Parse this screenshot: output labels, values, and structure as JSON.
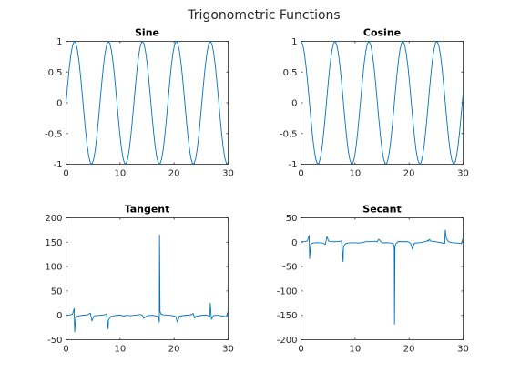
{
  "figure": {
    "suptitle": "Trigonometric Functions",
    "line_color": "#0072bd"
  },
  "chart_data": [
    {
      "type": "line",
      "title": "Sine",
      "function": "sin",
      "xlim": [
        0,
        30
      ],
      "ylim": [
        -1,
        1
      ],
      "xticks": [
        0,
        10,
        20,
        30
      ],
      "yticks": [
        -1,
        -0.5,
        0,
        0.5,
        1
      ],
      "ytick_labels": [
        "-1",
        "-0.5",
        "0",
        "0.5",
        "1"
      ],
      "series": [
        {
          "x": [
            0.0,
            0.3,
            0.6,
            0.9,
            1.2,
            1.5,
            1.8,
            2.1,
            2.4,
            2.7,
            3.0,
            3.3,
            3.6,
            3.9,
            4.2,
            4.5,
            4.8,
            5.1,
            5.4,
            5.7,
            6.0,
            6.3,
            6.6,
            6.9,
            7.2,
            7.5,
            7.8,
            8.1,
            8.4,
            8.7,
            9.0,
            9.3,
            9.6,
            9.9,
            10.2,
            10.5,
            10.8,
            11.1,
            11.4,
            11.7,
            12.0,
            12.3,
            12.6,
            12.9,
            13.2,
            13.5,
            13.8,
            14.1,
            14.4,
            14.7,
            15.0,
            15.3,
            15.6,
            15.9,
            16.2,
            16.5,
            16.8,
            17.1,
            17.4,
            17.7,
            18.0,
            18.3,
            18.6,
            18.9,
            19.2,
            19.5,
            19.8,
            20.1,
            20.4,
            20.7,
            21.0,
            21.3,
            21.6,
            21.9,
            22.2,
            22.5,
            22.8,
            23.1,
            23.4,
            23.7,
            24.0,
            24.3,
            24.6,
            24.9,
            25.2,
            25.5,
            25.8,
            26.1,
            26.4,
            26.7,
            27.0,
            27.3,
            27.6,
            27.9,
            28.2,
            28.5,
            28.8,
            29.1,
            29.4,
            29.7,
            30.0
          ],
          "y": [
            0.0,
            0.296,
            0.565,
            0.783,
            0.932,
            0.997,
            0.974,
            0.863,
            0.675,
            0.427,
            0.141,
            -0.158,
            -0.443,
            -0.688,
            -0.872,
            -0.978,
            -0.996,
            -0.926,
            -0.773,
            -0.551,
            -0.279,
            0.017,
            0.312,
            0.579,
            0.794,
            0.938,
            0.998,
            0.97,
            0.854,
            0.662,
            0.412,
            0.124,
            -0.175,
            -0.458,
            -0.7,
            -0.88,
            -0.981,
            -0.994,
            -0.92,
            -0.762,
            -0.537,
            -0.263,
            0.034,
            0.327,
            0.593,
            0.804,
            0.943,
            0.999,
            0.966,
            0.845,
            0.65,
            0.397,
            0.108,
            -0.191,
            -0.473,
            -0.712,
            -0.888,
            -0.984,
            -0.991,
            -0.913,
            -0.751,
            -0.522,
            -0.246,
            0.051,
            0.343,
            0.606,
            0.814,
            0.948,
            1.0,
            0.962,
            0.837,
            0.637,
            0.381,
            0.091,
            -0.208,
            -0.488,
            -0.724,
            -0.895,
            -0.987,
            -0.989,
            -0.906,
            -0.74,
            -0.508,
            -0.23,
            0.068,
            0.359,
            0.62,
            0.824,
            0.953,
            1.0,
            0.956,
            0.829,
            0.624,
            0.366,
            0.075,
            -0.224,
            -0.502,
            -0.735,
            -0.902,
            -0.99,
            -0.988
          ]
        }
      ]
    },
    {
      "type": "line",
      "title": "Cosine",
      "function": "cos",
      "xlim": [
        0,
        30
      ],
      "ylim": [
        -1,
        1
      ],
      "xticks": [
        0,
        10,
        20,
        30
      ],
      "yticks": [
        -1,
        -0.5,
        0,
        0.5,
        1
      ],
      "ytick_labels": [
        "-1",
        "-0.5",
        "0",
        "0.5",
        "1"
      ],
      "series": [
        {
          "x": [
            0.0,
            0.3,
            0.6,
            0.9,
            1.2,
            1.5,
            1.8,
            2.1,
            2.4,
            2.7,
            3.0,
            3.3,
            3.6,
            3.9,
            4.2,
            4.5,
            4.8,
            5.1,
            5.4,
            5.7,
            6.0,
            6.3,
            6.6,
            6.9,
            7.2,
            7.5,
            7.8,
            8.1,
            8.4,
            8.7,
            9.0,
            9.3,
            9.6,
            9.9,
            10.2,
            10.5,
            10.8,
            11.1,
            11.4,
            11.7,
            12.0,
            12.3,
            12.6,
            12.9,
            13.2,
            13.5,
            13.8,
            14.1,
            14.4,
            14.7,
            15.0,
            15.3,
            15.6,
            15.9,
            16.2,
            16.5,
            16.8,
            17.1,
            17.4,
            17.7,
            18.0,
            18.3,
            18.6,
            18.9,
            19.2,
            19.5,
            19.8,
            20.1,
            20.4,
            20.7,
            21.0,
            21.3,
            21.6,
            21.9,
            22.2,
            22.5,
            22.8,
            23.1,
            23.4,
            23.7,
            24.0,
            24.3,
            24.6,
            24.9,
            25.2,
            25.5,
            25.8,
            26.1,
            26.4,
            26.7,
            27.0,
            27.3,
            27.6,
            27.9,
            28.2,
            28.5,
            28.8,
            29.1,
            29.4,
            29.7,
            30.0
          ],
          "y": [
            1.0,
            0.955,
            0.825,
            0.622,
            0.362,
            0.071,
            -0.227,
            -0.505,
            -0.737,
            -0.904,
            -0.99,
            -0.987,
            -0.897,
            -0.726,
            -0.49,
            -0.211,
            0.087,
            0.378,
            0.635,
            0.835,
            0.96,
            1.0,
            0.95,
            0.815,
            0.608,
            0.347,
            0.054,
            -0.243,
            -0.519,
            -0.749,
            -0.911,
            -0.992,
            -0.985,
            -0.889,
            -0.714,
            -0.476,
            -0.195,
            0.104,
            0.393,
            0.648,
            0.844,
            0.965,
            0.999,
            0.945,
            0.805,
            0.595,
            0.331,
            0.037,
            -0.26,
            -0.534,
            -0.76,
            -0.918,
            -0.994,
            -0.982,
            -0.882,
            -0.703,
            -0.461,
            -0.178,
            0.121,
            0.409,
            0.66,
            0.853,
            0.969,
            0.999,
            0.939,
            0.796,
            0.581,
            0.315,
            0.02,
            -0.276,
            -0.548,
            -0.771,
            -0.925,
            -0.996,
            -0.979,
            -0.874,
            -0.69,
            -0.446,
            -0.162,
            0.137,
            0.424,
            0.673,
            0.862,
            0.973,
            0.997,
            0.933,
            0.785,
            0.567,
            0.3,
            0.004,
            -0.292,
            -0.562,
            -0.782,
            -0.931,
            -0.997,
            -0.976,
            -0.866,
            -0.677,
            -0.431,
            -0.145,
            0.154
          ]
        }
      ]
    },
    {
      "type": "line",
      "title": "Tangent",
      "function": "tan",
      "xlim": [
        0,
        30
      ],
      "ylim": [
        -50,
        200
      ],
      "xticks": [
        0,
        10,
        20,
        30
      ],
      "yticks": [
        -50,
        0,
        50,
        100,
        150,
        200
      ],
      "ytick_labels": [
        "-50",
        "0",
        "50",
        "100",
        "150",
        "200"
      ],
      "series": [
        {
          "x": [
            0,
            0.3,
            0.6,
            0.9,
            1.2,
            1.5,
            1.6,
            1.8,
            2.1,
            2.4,
            3,
            4,
            4.5,
            4.8,
            5.1,
            5.4,
            6,
            7,
            7.5,
            7.8,
            7.85,
            8.0,
            8.3,
            9,
            10,
            10.8,
            11.0,
            11.3,
            12,
            13,
            13.8,
            14.1,
            14.4,
            15,
            16,
            16.8,
            17.1,
            17.27,
            17.3,
            17.4,
            17.6,
            18,
            19,
            19.8,
            20.3,
            20.6,
            21,
            22,
            23.2,
            23.5,
            23.6,
            23.8,
            24,
            25,
            26,
            26.6,
            26.7,
            26.9,
            27.3,
            28,
            29,
            29.7,
            29.9,
            30
          ],
          "y": [
            0,
            0.3,
            0.7,
            1.3,
            2.6,
            14.1,
            -34,
            -4.3,
            -1.7,
            -0.9,
            -0.1,
            1.2,
            4.6,
            -11.4,
            -2.4,
            -0.8,
            -0.3,
            0.9,
            2.7,
            -28,
            -10,
            -6.8,
            -2.4,
            -0.5,
            0.6,
            -1.5,
            -0.1,
            -0.3,
            -0.6,
            0.5,
            1.8,
            0,
            -6,
            -0.9,
            0.3,
            -1.6,
            -2.8,
            -14,
            165,
            8,
            2.6,
            1.1,
            0.2,
            -0.6,
            -2.3,
            -14,
            -1.5,
            -0.1,
            1.3,
            4.2,
            2,
            -6,
            -2.1,
            -0.1,
            0.8,
            -2.4,
            25,
            -8,
            -0.5,
            0.3,
            -1.4,
            -2.8,
            6,
            -6.4
          ]
        }
      ]
    },
    {
      "type": "line",
      "title": "Secant",
      "function": "sec",
      "xlim": [
        0,
        30
      ],
      "ylim": [
        -200,
        50
      ],
      "xticks": [
        0,
        10,
        20,
        30
      ],
      "yticks": [
        -200,
        -150,
        -100,
        -50,
        0,
        50
      ],
      "ytick_labels": [
        "-200",
        "-150",
        "-100",
        "-50",
        "0",
        "50"
      ],
      "series": [
        {
          "x": [
            0,
            0.3,
            0.6,
            0.9,
            1.2,
            1.5,
            1.6,
            1.8,
            2.1,
            2.4,
            3,
            4,
            4.5,
            4.8,
            5.1,
            5.4,
            6,
            7,
            7.5,
            7.8,
            7.85,
            8.0,
            8.3,
            9,
            10,
            10.8,
            11.0,
            11.3,
            12,
            13,
            13.8,
            14.1,
            14.4,
            15,
            16,
            16.8,
            17.1,
            17.27,
            17.3,
            17.4,
            17.6,
            18,
            19,
            19.8,
            20.3,
            20.6,
            21,
            22,
            23.2,
            23.5,
            23.6,
            23.8,
            24,
            25,
            26,
            26.6,
            26.7,
            26.9,
            27.3,
            28,
            29,
            29.7,
            29.9,
            30
          ],
          "y": [
            1,
            1.05,
            1.2,
            1.6,
            2.8,
            14.1,
            -34,
            -4.4,
            -2,
            -1.4,
            -1,
            -1.5,
            -4.7,
            11.4,
            2.6,
            1.3,
            1,
            1.3,
            2.9,
            -40,
            -12,
            -7,
            -2.6,
            -1.1,
            -1.2,
            -1.8,
            -1,
            -1.05,
            1.2,
            1.1,
            2,
            1,
            6.1,
            -1.3,
            -1,
            -1.9,
            -3,
            -14,
            -168,
            -8,
            -2.8,
            1.5,
            1,
            1,
            -2.5,
            -14,
            -1.8,
            -1,
            1.6,
            4.3,
            2.2,
            6,
            2.3,
            1,
            -1.3,
            -2.6,
            25,
            8,
            1.1,
            -1,
            -1.7,
            -3,
            6,
            6.5
          ]
        }
      ]
    }
  ]
}
